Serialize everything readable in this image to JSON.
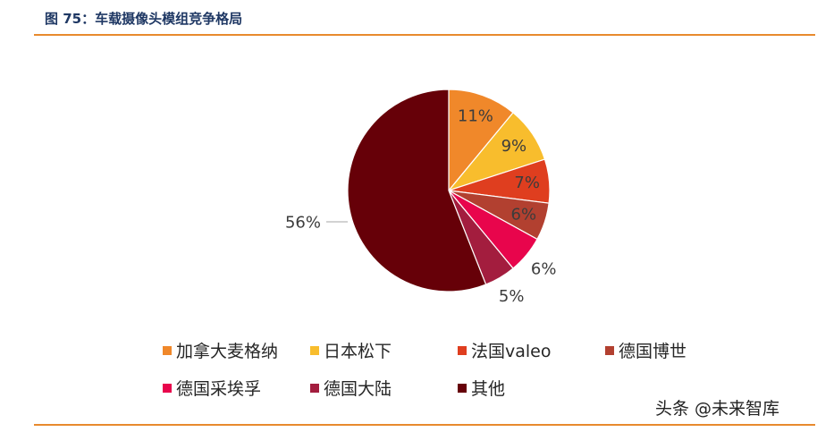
{
  "figure": {
    "title": "图 75：车载摄像头模组竞争格局"
  },
  "chart_data": {
    "type": "pie",
    "title": "",
    "start_angle": "12 o'clock",
    "direction": "clockwise",
    "slices": [
      {
        "name": "加拿大麦格纳",
        "value": 11,
        "label": "11%",
        "color": "#f0882a",
        "label_position": "inside"
      },
      {
        "name": "日本松下",
        "value": 9,
        "label": "9%",
        "color": "#f8bd2d",
        "label_position": "inside"
      },
      {
        "name": "法国valeo",
        "value": 7,
        "label": "7%",
        "color": "#df3e1f",
        "label_position": "inside"
      },
      {
        "name": "德国博世",
        "value": 6,
        "label": "6%",
        "color": "#b24030",
        "label_position": "inside"
      },
      {
        "name": "德国采埃孚",
        "value": 6,
        "label": "6%",
        "color": "#e8054c",
        "label_position": "outside"
      },
      {
        "name": "德国大陆",
        "value": 5,
        "label": "5%",
        "color": "#a31d3e",
        "label_position": "outside"
      },
      {
        "name": "其他",
        "value": 56,
        "label": "56%",
        "color": "#660008",
        "label_position": "outside"
      }
    ],
    "legend": {
      "placement": "bottom",
      "items": [
        "加拿大麦格纳",
        "日本松下",
        "法国valeo",
        "德国博世",
        "德国采埃孚",
        "德国大陆",
        "其他"
      ]
    }
  },
  "watermark": {
    "text": "头条 @未来智库"
  }
}
